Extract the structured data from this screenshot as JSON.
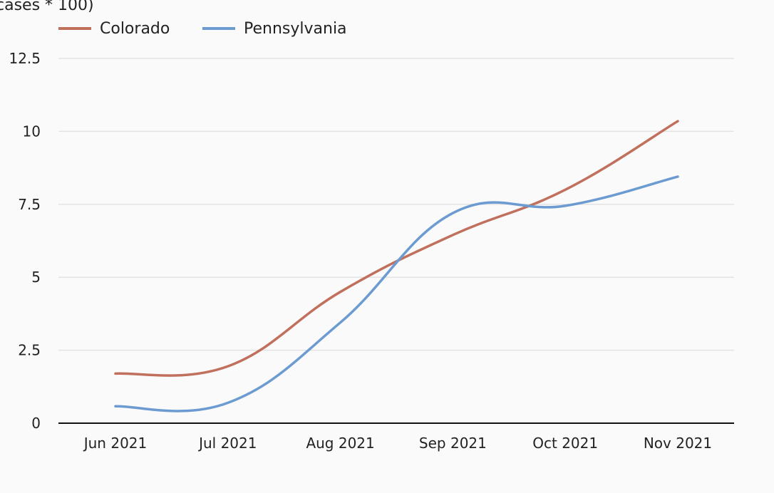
{
  "chart_data": {
    "type": "line",
    "ylabel": "cases * 100)",
    "categories": [
      "Jun 2021",
      "Jul 2021",
      "Aug 2021",
      "Sep 2021",
      "Oct 2021",
      "Nov 2021"
    ],
    "y_ticks": [
      "0",
      "2.5",
      "5",
      "7.5",
      "10",
      "12.5"
    ],
    "y_tick_values": [
      0,
      2.5,
      5,
      7.5,
      10,
      12.5
    ],
    "ylim": [
      0,
      12.5
    ],
    "grid": true,
    "legend_position": "top-left",
    "series": [
      {
        "name": "Colorado",
        "color": "#c0705c",
        "values": [
          1.7,
          1.95,
          4.5,
          6.45,
          8.0,
          10.35
        ]
      },
      {
        "name": "Pennsylvania",
        "color": "#6b9bd1",
        "values": [
          0.58,
          0.7,
          3.45,
          7.2,
          7.45,
          8.45
        ]
      }
    ]
  }
}
